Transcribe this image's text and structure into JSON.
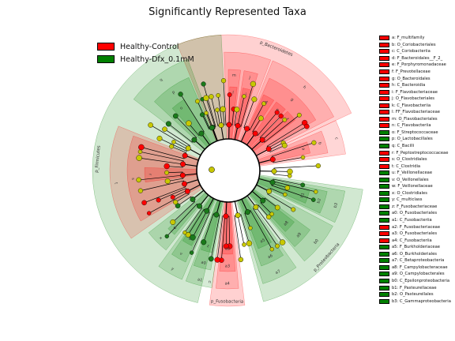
{
  "title": "Significantly Represented Taxa",
  "groups": [
    {
      "name": "Healthy-Control",
      "color": "#ff0000"
    },
    {
      "name": "Healthy-Dfx_0.1mM",
      "color": "#008000"
    }
  ],
  "taxa_legend": [
    {
      "label": "a: F_multifamily",
      "group": 0
    },
    {
      "label": "b: O_Coriobacteriales",
      "group": 0
    },
    {
      "label": "c: C_Coriobacteriia",
      "group": 0
    },
    {
      "label": "d: F_Bacteroidales__F_2_",
      "group": 0
    },
    {
      "label": "e: F_Porphyromonadaceae",
      "group": 0
    },
    {
      "label": "f: F_Prevotellaceae",
      "group": 0
    },
    {
      "label": "g: O_Bacteroidales",
      "group": 0
    },
    {
      "label": "h: C_Bacteroidia",
      "group": 0
    },
    {
      "label": "i: F_Flavobacteriaceae",
      "group": 0
    },
    {
      "label": "j: O_Flavobacteriales",
      "group": 0
    },
    {
      "label": "k: C_Flavobacteriia",
      "group": 0
    },
    {
      "label": "l: FF_Flavobacteriaceae",
      "group": 0
    },
    {
      "label": "m: O_Flavobacteriales",
      "group": 0
    },
    {
      "label": "n: C_Flavobacteriia",
      "group": 0
    },
    {
      "label": "o: F_Streptococcaceae",
      "group": 1
    },
    {
      "label": "p: O_Lactobacillales",
      "group": 1
    },
    {
      "label": "q: C_Bacilli",
      "group": 1
    },
    {
      "label": "r: F_Peptostreptococcaceae",
      "group": 0
    },
    {
      "label": "s: O_Clostridiales",
      "group": 0
    },
    {
      "label": "t: C_Clostridia",
      "group": 0
    },
    {
      "label": "u: F_Veillonellaceae",
      "group": 1
    },
    {
      "label": "v: O_Veillonellales",
      "group": 1
    },
    {
      "label": "w: F_Veillonellaceae",
      "group": 1
    },
    {
      "label": "x: O_Clostridiales",
      "group": 1
    },
    {
      "label": "y: C_multiclass",
      "group": 1
    },
    {
      "label": "z: F_Fusobacteriaceae",
      "group": 1
    },
    {
      "label": "a0: O_Fusobacteriales",
      "group": 1
    },
    {
      "label": "a1: C_Fusobacteriia",
      "group": 1
    },
    {
      "label": "a2: F_Fusobacteriaceae",
      "group": 0
    },
    {
      "label": "a3: O_Fusobacteriales",
      "group": 0
    },
    {
      "label": "a4: C_Fusobacteriia",
      "group": 0
    },
    {
      "label": "a5: F_Burkholderiaceae",
      "group": 1
    },
    {
      "label": "a6: O_Burkholderiales",
      "group": 1
    },
    {
      "label": "a7: C_Betaproteobacteria",
      "group": 1
    },
    {
      "label": "a8: F_Campylobacteraceae",
      "group": 1
    },
    {
      "label": "a9: O_Campylobacterales",
      "group": 1
    },
    {
      "label": "b0: C_Epsilonproteobacteria",
      "group": 1
    },
    {
      "label": "b1: F_Pasteurellaceae",
      "group": 1
    },
    {
      "label": "b2: O_Pasteurellales",
      "group": 1
    },
    {
      "label": "b3: C_Gammaproteobacteria",
      "group": 1
    }
  ],
  "chart_data": {
    "type": "cladogram",
    "title": "Significantly Represented Taxa",
    "legend_position": "top-left",
    "phylum_sectors": [
      {
        "label": "p_Bacteroidetes",
        "group": 0,
        "start_deg": -22,
        "end_deg": 65
      },
      {
        "label": "p_Fusobacteria",
        "group": 0,
        "start_deg": 173,
        "end_deg": 188
      },
      {
        "label": "p_Firmicutes",
        "group": 1,
        "start_deg": 193,
        "end_deg": 357
      },
      {
        "label": "p_Proteobacteria",
        "group": 1,
        "start_deg": 98,
        "end_deg": 165
      }
    ],
    "class_sectors": [
      {
        "label": "h",
        "group": 0,
        "start_deg": 22,
        "end_deg": 63
      },
      {
        "label": "n",
        "group": 0,
        "start_deg": 358,
        "end_deg": 21
      },
      {
        "label": "c",
        "group": 0,
        "start_deg": 65,
        "end_deg": 82
      },
      {
        "label": "a4",
        "group": 0,
        "start_deg": 175,
        "end_deg": 186
      },
      {
        "label": "a1",
        "group": 1,
        "start_deg": 188,
        "end_deg": 201
      },
      {
        "label": "y",
        "group": 1,
        "start_deg": 203,
        "end_deg": 216
      },
      {
        "label": "q",
        "group": 1,
        "start_deg": 307,
        "end_deg": 340
      },
      {
        "label": "t",
        "group": 0,
        "start_deg": 235,
        "end_deg": 292
      },
      {
        "label": "a7",
        "group": 1,
        "start_deg": 145,
        "end_deg": 163
      },
      {
        "label": "b0",
        "group": 1,
        "start_deg": 118,
        "end_deg": 140
      },
      {
        "label": "b3",
        "group": 1,
        "start_deg": 100,
        "end_deg": 116
      }
    ],
    "order_sectors": [
      {
        "label": "g",
        "group": 0,
        "start_deg": 24,
        "end_deg": 60
      },
      {
        "label": "m",
        "group": 0,
        "start_deg": 0,
        "end_deg": 7
      },
      {
        "label": "j",
        "group": 0,
        "start_deg": 9,
        "end_deg": 17
      },
      {
        "label": "b",
        "group": 0,
        "start_deg": 67,
        "end_deg": 80
      },
      {
        "label": "a3",
        "group": 0,
        "start_deg": 176,
        "end_deg": 185
      },
      {
        "label": "a0",
        "group": 1,
        "start_deg": 190,
        "end_deg": 200
      },
      {
        "label": "x",
        "group": 1,
        "start_deg": 218,
        "end_deg": 232
      },
      {
        "label": "v",
        "group": 1,
        "start_deg": 205,
        "end_deg": 214
      },
      {
        "label": "s",
        "group": 0,
        "start_deg": 240,
        "end_deg": 290
      },
      {
        "label": "p",
        "group": 1,
        "start_deg": 313,
        "end_deg": 337
      },
      {
        "label": "a6",
        "group": 1,
        "start_deg": 147,
        "end_deg": 161
      },
      {
        "label": "a9",
        "group": 1,
        "start_deg": 126,
        "end_deg": 139
      },
      {
        "label": "b2",
        "group": 1,
        "start_deg": 102,
        "end_deg": 115
      }
    ],
    "family_sectors": [
      {
        "label": "d",
        "group": 0,
        "start_deg": 25,
        "end_deg": 33
      },
      {
        "label": "e",
        "group": 0,
        "start_deg": 35,
        "end_deg": 43
      },
      {
        "label": "f",
        "group": 0,
        "start_deg": 45,
        "end_deg": 53
      },
      {
        "label": "l",
        "group": 0,
        "start_deg": 1,
        "end_deg": 6
      },
      {
        "label": "i",
        "group": 0,
        "start_deg": 10,
        "end_deg": 16
      },
      {
        "label": "a",
        "group": 0,
        "start_deg": 70,
        "end_deg": 78
      },
      {
        "label": "a2",
        "group": 0,
        "start_deg": 177,
        "end_deg": 184
      },
      {
        "label": "z",
        "group": 1,
        "start_deg": 191,
        "end_deg": 199
      },
      {
        "label": "w",
        "group": 1,
        "start_deg": 220,
        "end_deg": 226
      },
      {
        "label": "u",
        "group": 1,
        "start_deg": 206,
        "end_deg": 213
      },
      {
        "label": "r",
        "group": 0,
        "start_deg": 262,
        "end_deg": 272
      },
      {
        "label": "o",
        "group": 1,
        "start_deg": 318,
        "end_deg": 328
      },
      {
        "label": "a5",
        "group": 1,
        "start_deg": 149,
        "end_deg": 159
      },
      {
        "label": "a8",
        "group": 1,
        "start_deg": 128,
        "end_deg": 137
      },
      {
        "label": "b1",
        "group": 1,
        "start_deg": 104,
        "end_deg": 113
      }
    ],
    "node_counts": {
      "red": 40,
      "green": 42,
      "yellow": 46
    }
  }
}
